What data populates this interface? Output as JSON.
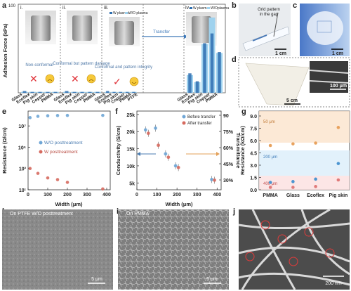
{
  "panel_letters": {
    "a": "a",
    "b": "b",
    "c": "c",
    "d": "d",
    "e": "e",
    "f": "f",
    "g": "g",
    "h": "h",
    "i": "i",
    "j": "j"
  },
  "panel_a": {
    "ylabel": "Adhesion Force (kPa)",
    "ymax_label": "100",
    "subpanels": [
      {
        "roman": "i.",
        "caption": "Non-conformal",
        "mark": "✕",
        "face": "sad"
      },
      {
        "roman": "ii.",
        "caption": "Conformal but pattern damage",
        "mark": "✕",
        "face": "sad"
      },
      {
        "roman": "iii.",
        "caption": "Conformal and pattern integrity",
        "mark": "✓",
        "face": "happy"
      },
      {
        "roman": "iv.",
        "caption": "",
        "mark": "",
        "face": ""
      }
    ],
    "legend_left": [
      "W plasma",
      "W/O plasma"
    ],
    "legend_right": [
      "W plasma",
      "W/Oplasma"
    ],
    "transfer_label": "Transfer",
    "xlabels_left": [
      "Glass",
      "Ecoflex",
      "Pig skin",
      "Copper",
      "PMMA"
    ],
    "xlabels_iii": [
      "Glass",
      "Ecoflex",
      "Pig skin",
      "Copper",
      "PMMA",
      "PTFE"
    ],
    "xlabels_iv": [
      "Glass",
      "Ecoflex",
      "Pig skin",
      "Copper",
      "PMMA"
    ]
  },
  "panel_b": {
    "text1": "Grid pattern",
    "text2": "in the gap",
    "scale": "1 cm"
  },
  "panel_c": {
    "scale": "1 cm"
  },
  "panel_d": {
    "scale": "5 cm",
    "inset_scale": "100 μm"
  },
  "panel_e": {
    "xlabel": "Width (μm)",
    "ylabel": "Resistance (Ω/cm)",
    "xticks": [
      "0",
      "100",
      "200",
      "300",
      "400"
    ],
    "yticks": [
      "10¹",
      "10³",
      "10⁵",
      "10⁷"
    ]
  },
  "panel_f": {
    "xlabel": "Width (μm)",
    "ylabel_left": "Conductivity (S/cm)",
    "ylabel_right": "Transmittance",
    "xticks": [
      "0",
      "100",
      "200",
      "300",
      "400"
    ],
    "yticks_left": [
      "5k",
      "10k",
      "15k",
      "20k",
      "25k"
    ],
    "yticks_right": [
      "30%",
      "45%",
      "60%",
      "75%",
      "90"
    ]
  },
  "panel_g": {
    "ylabel": "Resistance (kΩ/cm)",
    "yticks": [
      "0.0",
      "1.5",
      "3.0",
      "4.5",
      "6.0",
      "7.5",
      "9.0"
    ],
    "categories": [
      "PMMA",
      "Glass",
      "Ecoflex",
      "Pig skin"
    ],
    "band_labels": [
      "50 μm",
      "200 μm",
      "400 μm"
    ]
  },
  "panel_h": {
    "caption": "On PTFE W/O posttreatment",
    "scale": "5 μm"
  },
  "panel_i": {
    "caption": "On PMMA",
    "scale": "5 μm"
  },
  "panel_j": {
    "scale": "200 nm"
  },
  "chart_data": [
    {
      "type": "bar",
      "title": "",
      "ylabel": "Adhesion Force (kPa)",
      "ylim": [
        0,
        100
      ],
      "categories": [
        "Glass",
        "Ecoflex",
        "Pig skin",
        "Copper",
        "PMMA"
      ],
      "series": [
        {
          "name": "W plasma",
          "values": [
            2,
            1,
            1,
            1,
            1
          ]
        },
        {
          "name": "W/O plasma",
          "values": [
            1,
            1,
            1,
            1,
            1
          ]
        }
      ]
    },
    {
      "type": "bar",
      "title": "",
      "ylabel": "Adhesion Force (kPa)",
      "ylim": [
        0,
        100
      ],
      "categories": [
        "Glass",
        "Ecoflex",
        "Pig skin",
        "Copper",
        "PMMA"
      ],
      "series": [
        {
          "name": "W plasma",
          "values": [
            22,
            13,
            56,
            67,
            46
          ]
        },
        {
          "name": "W/Oplasma",
          "values": [
            20,
            12,
            55,
            85,
            45
          ]
        }
      ]
    },
    {
      "type": "scatter",
      "xlabel": "Width (μm)",
      "ylabel": "Resistance (Ω/cm)",
      "ylog": true,
      "series": [
        {
          "name": "W/O posttreatment",
          "x": [
            10,
            50,
            100,
            150,
            200,
            380
          ],
          "y": [
            60000000,
            80000000,
            90000000,
            95000000,
            97000000,
            98000000
          ]
        },
        {
          "name": "W posttreatment",
          "x": [
            10,
            50,
            100,
            150,
            200,
            380
          ],
          "y": [
            1000,
            350,
            130,
            90,
            50,
            12
          ]
        }
      ]
    },
    {
      "type": "scatter",
      "xlabel": "Width (μm)",
      "ylabel": "Conductivity (S/cm)",
      "series": [
        {
          "name": "Before transfer",
          "x": [
            50,
            100,
            150,
            200,
            380
          ],
          "y": [
            20500,
            21000,
            13500,
            10000,
            6000
          ]
        },
        {
          "name": "After transfer",
          "x": [
            50,
            100,
            150,
            200,
            380
          ],
          "y": [
            19500,
            16000,
            12500,
            9500,
            5800
          ]
        }
      ]
    },
    {
      "type": "scatter",
      "ylabel": "Resistance (kΩ/cm)",
      "categories": [
        "PMMA",
        "Glass",
        "Ecoflex",
        "Pig skin"
      ],
      "series": [
        {
          "name": "50 μm",
          "values": [
            5.4,
            5.6,
            5.7,
            7.6
          ]
        },
        {
          "name": "200 μm",
          "values": [
            0.9,
            1.0,
            1.3,
            3.2
          ]
        },
        {
          "name": "400 μm",
          "values": [
            0.3,
            0.3,
            0.4,
            1.2
          ]
        }
      ]
    }
  ]
}
